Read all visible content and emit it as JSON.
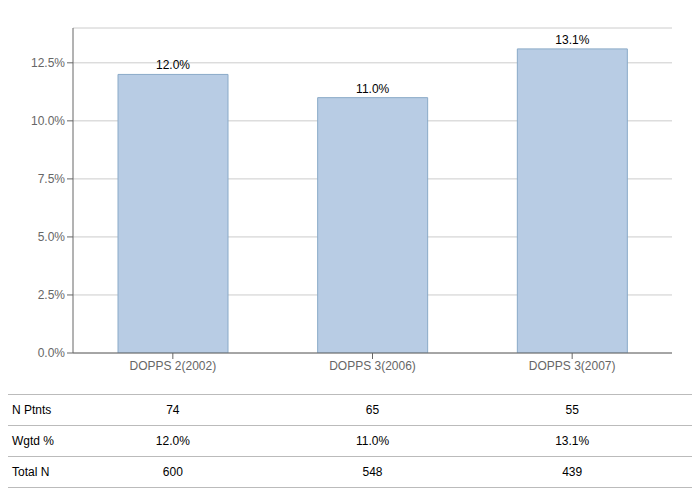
{
  "chart_data": {
    "type": "bar",
    "categories": [
      "DOPPS 2(2002)",
      "DOPPS 3(2006)",
      "DOPPS 3(2007)"
    ],
    "values": [
      0.12,
      0.11,
      0.131
    ],
    "value_labels": [
      "12.0%",
      "11.0%",
      "13.1%"
    ],
    "data_labels": true,
    "color": "#b8cce4",
    "ylim": [
      0,
      0.14
    ],
    "yticks": [
      {
        "value": 0.0,
        "label": "0.0%"
      },
      {
        "value": 0.025,
        "label": "2.5%"
      },
      {
        "value": 0.05,
        "label": "5.0%"
      },
      {
        "value": 0.075,
        "label": "7.5%"
      },
      {
        "value": 0.1,
        "label": "10.0%"
      },
      {
        "value": 0.125,
        "label": "12.5%"
      }
    ],
    "grid": true,
    "table": {
      "row_labels": [
        "N Ptnts",
        "Wgtd %",
        "Total N"
      ],
      "rows": [
        [
          "74",
          "65",
          "55"
        ],
        [
          "12.0%",
          "11.0%",
          "13.1%"
        ],
        [
          "600",
          "548",
          "439"
        ]
      ]
    }
  }
}
